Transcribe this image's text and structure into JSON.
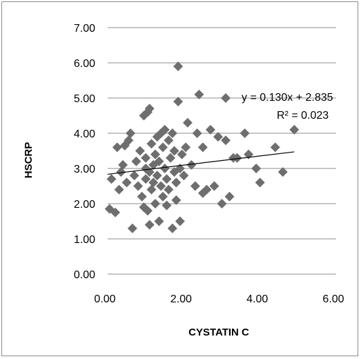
{
  "chart_data": {
    "type": "scatter",
    "title": "",
    "xlabel": "CYSTATIN C",
    "ylabel": "HSCRP",
    "xlim": [
      0,
      6
    ],
    "ylim": [
      0,
      7
    ],
    "x_ticks": [
      "0.00",
      "2.00",
      "4.00",
      "6.00"
    ],
    "y_ticks": [
      "0.00",
      "1.00",
      "2.00",
      "3.00",
      "4.00",
      "5.00",
      "6.00",
      "7.00"
    ],
    "grid": "horizontal",
    "marker_color": "#6e6e6e",
    "trendline": {
      "slope": 0.13,
      "intercept": 2.835,
      "x_range": [
        0,
        4.9
      ]
    },
    "annotations": {
      "equation": "y = 0.130x + 2.835",
      "r_squared": "R² = 0.023"
    },
    "points": [
      [
        0.05,
        1.85
      ],
      [
        0.1,
        2.7
      ],
      [
        0.2,
        1.75
      ],
      [
        0.25,
        3.6
      ],
      [
        0.3,
        2.4
      ],
      [
        0.35,
        2.9
      ],
      [
        0.4,
        3.1
      ],
      [
        0.45,
        3.65
      ],
      [
        0.5,
        2.6
      ],
      [
        0.55,
        3.8
      ],
      [
        0.6,
        4.0
      ],
      [
        0.65,
        1.3
      ],
      [
        0.7,
        2.8
      ],
      [
        0.75,
        3.2
      ],
      [
        0.8,
        2.5
      ],
      [
        0.85,
        3.5
      ],
      [
        0.9,
        2.2
      ],
      [
        0.95,
        1.9
      ],
      [
        0.95,
        4.5
      ],
      [
        1.0,
        3.0
      ],
      [
        1.0,
        2.7
      ],
      [
        1.0,
        3.3
      ],
      [
        1.05,
        1.8
      ],
      [
        1.05,
        4.6
      ],
      [
        1.1,
        2.9
      ],
      [
        1.1,
        4.7
      ],
      [
        1.1,
        1.4
      ],
      [
        1.15,
        3.7
      ],
      [
        1.15,
        2.4
      ],
      [
        1.2,
        3.1
      ],
      [
        1.2,
        2.6
      ],
      [
        1.25,
        3.4
      ],
      [
        1.25,
        2.0
      ],
      [
        1.3,
        3.9
      ],
      [
        1.3,
        2.8
      ],
      [
        1.35,
        1.5
      ],
      [
        1.35,
        3.2
      ],
      [
        1.4,
        4.0
      ],
      [
        1.4,
        2.5
      ],
      [
        1.45,
        3.6
      ],
      [
        1.45,
        2.2
      ],
      [
        1.5,
        3.0
      ],
      [
        1.5,
        4.1
      ],
      [
        1.55,
        2.7
      ],
      [
        1.55,
        1.95
      ],
      [
        1.6,
        3.8
      ],
      [
        1.6,
        2.4
      ],
      [
        1.65,
        3.3
      ],
      [
        1.7,
        1.3
      ],
      [
        1.7,
        4.0
      ],
      [
        1.75,
        2.9
      ],
      [
        1.75,
        3.5
      ],
      [
        1.8,
        2.1
      ],
      [
        1.8,
        2.6
      ],
      [
        1.85,
        4.9
      ],
      [
        1.85,
        5.9
      ],
      [
        1.9,
        3.0
      ],
      [
        1.9,
        1.5
      ],
      [
        1.95,
        3.4
      ],
      [
        2.0,
        2.8
      ],
      [
        2.05,
        3.6
      ],
      [
        2.1,
        4.3
      ],
      [
        2.2,
        3.1
      ],
      [
        2.3,
        2.5
      ],
      [
        2.35,
        4.0
      ],
      [
        2.4,
        5.1
      ],
      [
        2.5,
        3.6
      ],
      [
        2.5,
        2.3
      ],
      [
        2.6,
        2.4
      ],
      [
        2.7,
        4.1
      ],
      [
        2.8,
        2.5
      ],
      [
        2.9,
        3.9
      ],
      [
        3.0,
        2.0
      ],
      [
        3.1,
        3.8
      ],
      [
        3.1,
        5.0
      ],
      [
        3.2,
        2.2
      ],
      [
        3.3,
        3.3
      ],
      [
        3.4,
        3.3
      ],
      [
        3.6,
        4.0
      ],
      [
        3.7,
        3.4
      ],
      [
        3.9,
        3.0
      ],
      [
        4.0,
        2.6
      ],
      [
        4.4,
        3.6
      ],
      [
        4.6,
        2.9
      ],
      [
        4.9,
        4.1
      ]
    ]
  }
}
